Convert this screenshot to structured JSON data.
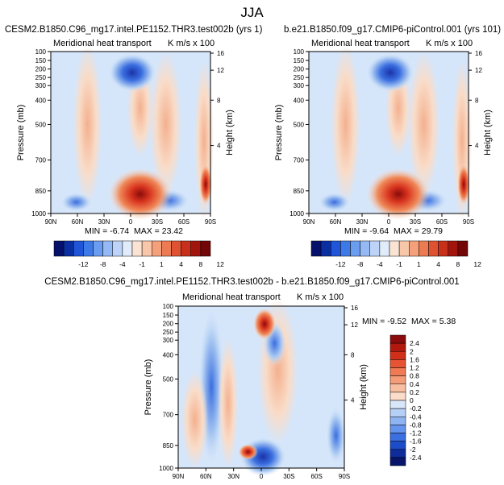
{
  "page": {
    "title": "JJA"
  },
  "colors": {
    "blue_dark": "#1a33a8",
    "blue_mid": "#3a6ee0",
    "blue_light": "#a9c8f2",
    "bg_pale_blue": "#d6e6fa",
    "peach_light": "#f9dcc8",
    "orange": "#f08a5a",
    "red": "#d8341e",
    "dark_red": "#8a0b0b"
  },
  "chart_data": [
    {
      "type": "heatmap",
      "id": "panel1",
      "case_title": "CESM2.B1850.C96_mg17.intel.PE1152.THR3.test002b (yrs 1)",
      "left_title": "Meridional heat transport",
      "right_title": "K m/s x 100",
      "xlabel": "",
      "ylabel": "Pressure (mb)",
      "ylabel_right": "Height (km)",
      "x_ticks": [
        "90N",
        "60N",
        "30N",
        "0",
        "30S",
        "60S",
        "90S"
      ],
      "y_ticks": [
        "100",
        "150",
        "200",
        "250",
        "300",
        "400",
        "500",
        "700",
        "850",
        "1000"
      ],
      "y_right_ticks": [
        "16",
        "12",
        "8",
        "4"
      ],
      "stats": {
        "min_label": "MIN = ",
        "min": "-6.74",
        "max_label": "MAX = ",
        "max": "23.42"
      }
    },
    {
      "type": "heatmap",
      "id": "panel2",
      "case_title": "b.e21.B1850.f09_g17.CMIP6-piControl.001 (yrs 101)",
      "left_title": "Meridional heat transport",
      "right_title": "K m/s x 100",
      "xlabel": "",
      "ylabel": "Pressure (mb)",
      "ylabel_right": "Height (km)",
      "x_ticks": [
        "90N",
        "60N",
        "30N",
        "0",
        "30S",
        "60S",
        "90S"
      ],
      "y_ticks": [
        "100",
        "150",
        "200",
        "250",
        "300",
        "400",
        "500",
        "700",
        "850",
        "1000"
      ],
      "y_right_ticks": [
        "16",
        "12",
        "8",
        "4"
      ],
      "stats": {
        "min_label": "MIN = ",
        "min": "-9.64",
        "max_label": "MAX = ",
        "max": "29.79"
      }
    },
    {
      "type": "heatmap",
      "id": "panel3",
      "case_title": "CESM2.B1850.C96_mg17.intel.PE1152.THR3.test002b - b.e21.B1850.f09_g17.CMIP6-piControl.001",
      "left_title": "Meridional heat transport",
      "right_title": "K m/s x 100",
      "xlabel": "",
      "ylabel": "Pressure (mb)",
      "ylabel_right": "Height (km)",
      "x_ticks": [
        "90N",
        "60N",
        "30N",
        "0",
        "30S",
        "60S",
        "90S"
      ],
      "y_ticks": [
        "100",
        "150",
        "200",
        "250",
        "300",
        "400",
        "500",
        "700",
        "850",
        "1000"
      ],
      "y_right_ticks": [
        "16",
        "12",
        "8",
        "4"
      ],
      "stats": {
        "min_label": "MIN = ",
        "min": "-9.52",
        "max_label": "MAX = ",
        "max": "5.38"
      }
    }
  ],
  "colorbars": {
    "top": {
      "labels": [
        "-12",
        "-8",
        "-4",
        "-1",
        "1",
        "4",
        "8",
        "12"
      ],
      "colors": [
        "#05106b",
        "#0a2fa3",
        "#1f55d6",
        "#3d7ae8",
        "#6a9cf0",
        "#94b9f5",
        "#bdd3f8",
        "#e1ecfb",
        "#fbe3d4",
        "#f8c6a8",
        "#f4a07a",
        "#ec7a52",
        "#de5232",
        "#c7301a",
        "#a1150d",
        "#730606"
      ]
    },
    "diff": {
      "labels": [
        "2.4",
        "2",
        "1.6",
        "1.2",
        "0.8",
        "0.4",
        "0.2",
        "0",
        "-0.2",
        "-0.4",
        "-0.8",
        "-1.2",
        "-1.6",
        "-2",
        "-2.4"
      ],
      "colors": [
        "#8a0b0b",
        "#b1190e",
        "#d02f1a",
        "#e75434",
        "#f07a54",
        "#f49c78",
        "#f8bea0",
        "#fbdcc8",
        "#d8e6f9",
        "#b6cff5",
        "#8fb4f2",
        "#6594ec",
        "#3b6fe2",
        "#1d4cc8",
        "#0f2c9a",
        "#07156a"
      ]
    }
  }
}
